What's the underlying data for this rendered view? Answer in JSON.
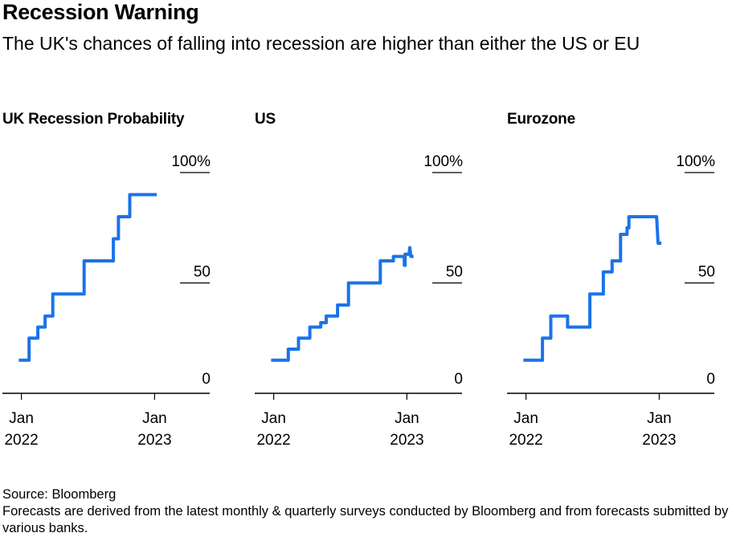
{
  "header": {
    "title": "Recession Warning",
    "subtitle": "The UK's chances of falling into recession are higher than either the US or EU"
  },
  "footer": {
    "source": "Source: Bloomberg",
    "note": "Forecasts are derived from the latest monthly & quarterly surveys conducted by Bloomberg and from forecasts submitted by various banks."
  },
  "colors": {
    "line": "#1a73e8",
    "axis": "#000000",
    "text": "#000000"
  },
  "chart_data": [
    {
      "type": "line",
      "title": "UK Recession Probability",
      "ylim": [
        0,
        100
      ],
      "y_ticks": [
        100,
        50,
        0
      ],
      "y_tick_labels": [
        "100%",
        "50",
        "0"
      ],
      "x_ticks": [
        "2022-01-01",
        "2023-01-01"
      ],
      "x_tick_labels": [
        [
          "Jan",
          "2022"
        ],
        [
          "Jan",
          "2023"
        ]
      ],
      "xlim": [
        "2021-11-10",
        "2023-06-01"
      ],
      "grid": false,
      "series": [
        {
          "x": [
            "2021-12-25",
            "2022-01-22",
            "2022-01-22",
            "2022-02-15",
            "2022-02-15",
            "2022-03-07",
            "2022-03-07",
            "2022-03-28",
            "2022-03-28",
            "2022-04-28",
            "2022-04-28",
            "2022-06-22",
            "2022-06-22",
            "2022-09-10",
            "2022-09-10",
            "2022-09-12",
            "2022-09-12",
            "2022-09-24",
            "2022-09-24",
            "2022-10-25",
            "2022-10-25",
            "2023-01-07"
          ],
          "y": [
            15,
            15,
            25,
            25,
            30,
            30,
            35,
            35,
            45,
            45,
            45,
            45,
            60,
            60,
            70,
            70,
            70,
            70,
            80,
            80,
            90,
            90
          ]
        }
      ]
    },
    {
      "type": "line",
      "title": "US",
      "ylim": [
        0,
        100
      ],
      "y_ticks": [
        100,
        50,
        0
      ],
      "y_tick_labels": [
        "100%",
        "50",
        "0"
      ],
      "x_ticks": [
        "2022-01-01",
        "2023-01-01"
      ],
      "x_tick_labels": [
        [
          "Jan",
          "2022"
        ],
        [
          "Jan",
          "2023"
        ]
      ],
      "xlim": [
        "2021-11-10",
        "2023-06-01"
      ],
      "grid": false,
      "series": [
        {
          "x": [
            "2021-12-25",
            "2022-02-10",
            "2022-02-10",
            "2022-03-10",
            "2022-03-10",
            "2022-04-10",
            "2022-04-10",
            "2022-05-10",
            "2022-05-10",
            "2022-05-25",
            "2022-05-25",
            "2022-06-25",
            "2022-06-25",
            "2022-07-25",
            "2022-07-25",
            "2022-10-20",
            "2022-10-20",
            "2022-11-25",
            "2022-11-25",
            "2022-12-25",
            "2022-12-25",
            "2022-12-27",
            "2022-12-27",
            "2023-01-07",
            "2023-01-09",
            "2023-01-12",
            "2023-01-19"
          ],
          "y": [
            15,
            15,
            20,
            20,
            25,
            25,
            30,
            30,
            32,
            32,
            35,
            35,
            40,
            40,
            50,
            50,
            60,
            60,
            62,
            62,
            58,
            58,
            63,
            63,
            66,
            62,
            62
          ]
        }
      ]
    },
    {
      "type": "line",
      "title": "Eurozone",
      "ylim": [
        0,
        100
      ],
      "y_ticks": [
        100,
        50,
        0
      ],
      "y_tick_labels": [
        "100%",
        "50",
        "0"
      ],
      "x_ticks": [
        "2022-01-01",
        "2023-01-01"
      ],
      "x_tick_labels": [
        [
          "Jan",
          "2022"
        ],
        [
          "Jan",
          "2023"
        ]
      ],
      "xlim": [
        "2021-11-10",
        "2023-06-01"
      ],
      "grid": false,
      "series": [
        {
          "x": [
            "2021-12-25",
            "2022-02-15",
            "2022-02-15",
            "2022-03-10",
            "2022-03-10",
            "2022-04-25",
            "2022-04-25",
            "2022-06-25",
            "2022-06-25",
            "2022-08-01",
            "2022-08-01",
            "2022-08-25",
            "2022-08-25",
            "2022-09-15",
            "2022-09-15",
            "2022-09-17",
            "2022-09-17",
            "2022-10-05",
            "2022-10-05",
            "2022-10-10",
            "2022-10-10",
            "2022-12-25",
            "2022-12-29",
            "2023-01-07"
          ],
          "y": [
            15,
            15,
            25,
            25,
            35,
            35,
            30,
            30,
            45,
            45,
            55,
            55,
            60,
            60,
            60,
            60,
            72,
            72,
            75,
            75,
            80,
            80,
            68,
            68
          ]
        }
      ]
    }
  ]
}
